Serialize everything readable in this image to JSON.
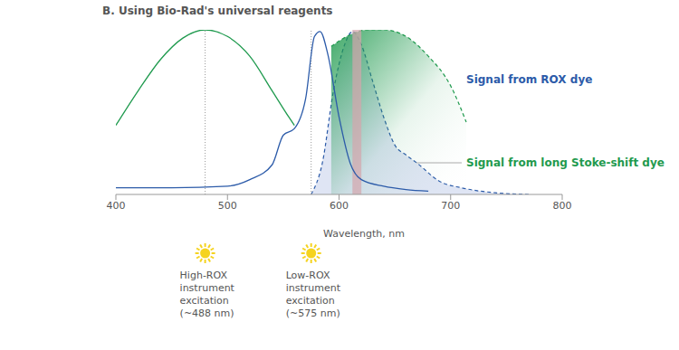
{
  "chart_data": {
    "type": "line",
    "title": "B. Using Bio-Rad's universal reagents",
    "x_label": "Wavelength, nm",
    "xlim": [
      400,
      800
    ],
    "xticks": [
      400,
      500,
      600,
      700,
      800
    ],
    "ylim": [
      0,
      100
    ],
    "tick_labels": "x",
    "grid": false,
    "series": [
      {
        "type": "line",
        "color": "#1f9a4e",
        "line_style": "solid",
        "x": [
          400,
          420,
          440,
          460,
          480,
          500,
          520,
          540,
          555,
          560
        ],
        "values": [
          42,
          63,
          82,
          95,
          100,
          96,
          84,
          63,
          47,
          42
        ]
      },
      {
        "type": "line",
        "color": "#2c5ba9",
        "line_style": "solid",
        "x": [
          400,
          450,
          500,
          520,
          540,
          550,
          560,
          570,
          578,
          583,
          590,
          600,
          610,
          620,
          640,
          660,
          680
        ],
        "values": [
          4,
          4,
          5,
          9,
          18,
          36,
          40,
          58,
          96,
          99,
          85,
          47,
          19,
          9,
          5,
          3,
          2
        ]
      },
      {
        "name": "Signal from ROX dye",
        "type": "area",
        "color": "#2c5ba9",
        "line_style": "dashed",
        "x": [
          575,
          585,
          595,
          605,
          612,
          620,
          630,
          640,
          650,
          660,
          670,
          690,
          710,
          740,
          770
        ],
        "values": [
          0,
          19,
          63,
          91,
          99,
          91,
          69,
          47,
          30,
          24,
          19,
          8,
          4,
          1,
          0
        ]
      },
      {
        "name": "Signal from long Stoke-shift dye",
        "type": "area",
        "color": "#1f9a4e",
        "line_style": "dashed",
        "x": [
          593,
          610,
          625,
          640,
          660,
          680,
          700,
          714
        ],
        "values": [
          90,
          97,
          100,
          100,
          96,
          84,
          66,
          44
        ]
      }
    ],
    "highlight_band": [
      612,
      620
    ],
    "annotations": [
      {
        "x": 480,
        "text": [
          "High-ROX",
          "instrument",
          "excitation",
          "(~488 nm)"
        ]
      },
      {
        "x": 575,
        "text": [
          "Low-ROX",
          "instrument",
          "excitation",
          "(~575 nm)"
        ]
      }
    ]
  }
}
